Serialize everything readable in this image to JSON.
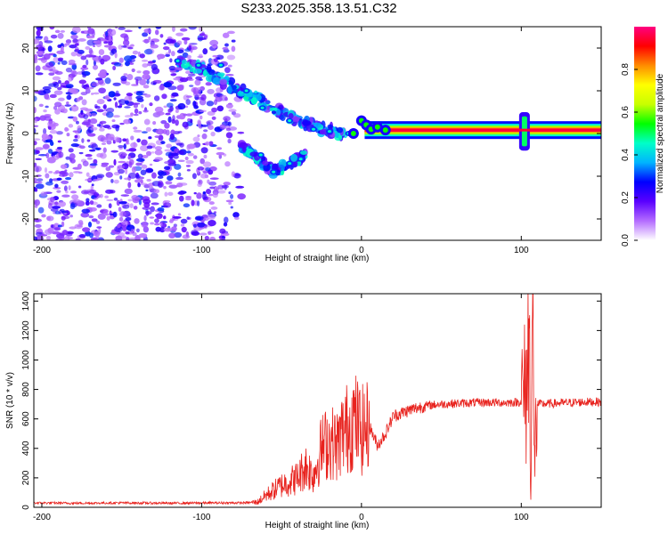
{
  "title": "S233.2025.358.13.51.C32",
  "chart_data": [
    {
      "type": "heatmap",
      "xlabel": "Height of straight line (km)",
      "ylabel": "Frequency (Hz)",
      "xlim": [
        -205,
        150
      ],
      "ylim": [
        -25,
        25
      ],
      "xticks": [
        -200,
        -100,
        0,
        100
      ],
      "yticks": [
        -20,
        -10,
        0,
        10,
        20
      ],
      "colorbar": {
        "label": "Normalized spectral amplitude",
        "range": [
          0,
          1
        ],
        "ticks": [
          "0.0",
          "0.2",
          "0.4",
          "0.6",
          "0.8"
        ],
        "colors": [
          "#ffffff",
          "#b46cff",
          "#5a00ff",
          "#0000ff",
          "#00b4ff",
          "#00ffc8",
          "#00ff00",
          "#c8ff00",
          "#ffff00",
          "#ff8c00",
          "#ff0000",
          "#ff0080"
        ]
      },
      "features": {
        "noise_region_x": [
          -205,
          -75
        ],
        "descending_branch_upper": {
          "x": [
            -115,
            -100,
            -85,
            -70,
            -55,
            -40,
            -25,
            -10
          ],
          "y": [
            17,
            15,
            12,
            9,
            6,
            3,
            1,
            0
          ]
        },
        "descending_branch_lower": {
          "x": [
            -75,
            -65,
            -55,
            -45,
            -35
          ],
          "y": [
            -3,
            -6,
            -9,
            -7,
            -5
          ]
        },
        "carrier_line": {
          "x": [
            0,
            150
          ],
          "y": 0.8,
          "amplitude": 0.95
        },
        "broadband_burst_x": 102
      }
    },
    {
      "type": "line",
      "xlabel": "Height of straight line (km)",
      "ylabel": "SNR (10 * v/v)",
      "xlim": [
        -205,
        150
      ],
      "ylim": [
        0,
        1450
      ],
      "xticks": [
        -200,
        -100,
        0,
        100
      ],
      "yticks": [
        0,
        200,
        400,
        600,
        800,
        1000,
        1200,
        1400
      ],
      "color": "#e8231e",
      "series": [
        {
          "name": "SNR",
          "x": [
            -205,
            -180,
            -150,
            -120,
            -90,
            -75,
            -65,
            -60,
            -50,
            -40,
            -35,
            -30,
            -25,
            -20,
            -15,
            -12,
            -8,
            -5,
            0,
            5,
            10,
            15,
            20,
            30,
            40,
            50,
            60,
            70,
            80,
            90,
            100,
            103,
            105,
            106,
            107,
            108,
            110,
            120,
            130,
            140,
            150
          ],
          "values": [
            30,
            28,
            30,
            28,
            30,
            30,
            35,
            80,
            150,
            200,
            280,
            220,
            400,
            450,
            420,
            500,
            550,
            600,
            520,
            550,
            420,
            500,
            620,
            660,
            690,
            700,
            705,
            710,
            712,
            710,
            715,
            780,
            1200,
            100,
            1400,
            300,
            700,
            705,
            710,
            715,
            715
          ]
        }
      ]
    }
  ]
}
